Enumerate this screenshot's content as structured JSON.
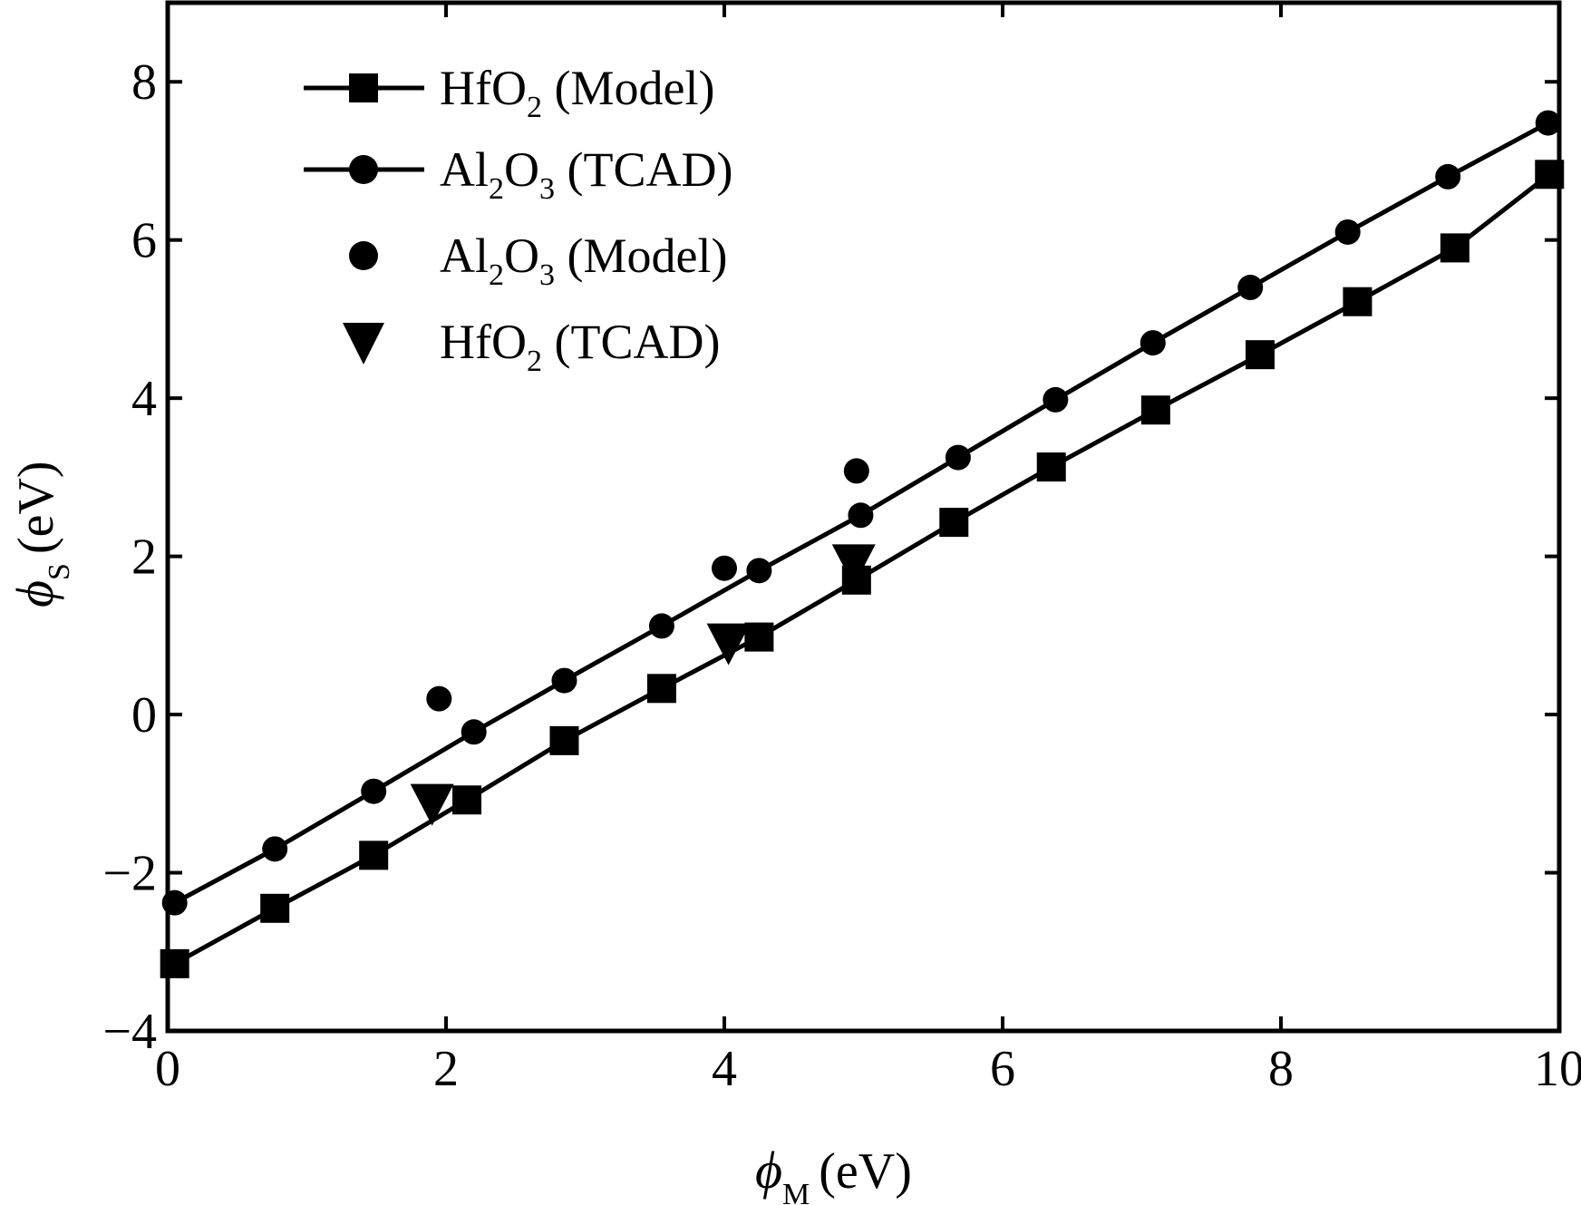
{
  "chart_data": {
    "type": "line",
    "xlabel": {
      "symbol": "ϕ",
      "subscript": "M",
      "unit": "(eV)"
    },
    "ylabel": {
      "symbol": "ϕ",
      "subscript": "S",
      "unit": "(eV)"
    },
    "xlim": [
      0,
      10
    ],
    "ylim": [
      -4,
      9
    ],
    "xticks": [
      0,
      2,
      4,
      6,
      8,
      10
    ],
    "yticks": [
      -4,
      -2,
      0,
      2,
      4,
      6,
      8
    ],
    "xtick_labels": [
      "0",
      "2",
      "4",
      "6",
      "8",
      "10"
    ],
    "ytick_labels": [
      "−4",
      "−2",
      "0",
      "2",
      "4",
      "6",
      "8"
    ],
    "grid": false,
    "legend_position": "top-left",
    "series": [
      {
        "name": "HfO2 (Model)",
        "label_main": "HfO",
        "label_sub": "2",
        "label_rest": " (Model)",
        "marker": "square",
        "line": true,
        "color": "#000000",
        "x": [
          0.05,
          0.77,
          1.48,
          2.15,
          2.85,
          3.55,
          4.25,
          4.95,
          5.65,
          6.35,
          7.1,
          7.85,
          8.55,
          9.25,
          9.93
        ],
        "y": [
          -3.15,
          -2.45,
          -1.78,
          -1.08,
          -0.33,
          0.33,
          0.98,
          1.7,
          2.43,
          3.13,
          3.85,
          4.55,
          5.22,
          5.9,
          6.83
        ]
      },
      {
        "name": "Al2O3 (TCAD)",
        "label_parts": [
          "Al",
          "2",
          "O",
          "3",
          " (TCAD)"
        ],
        "marker": "circle",
        "line": true,
        "color": "#000000",
        "x": [
          0.05,
          0.77,
          1.48,
          2.2,
          2.85,
          3.55,
          4.25,
          4.98,
          5.68,
          6.38,
          7.08,
          7.78,
          8.48,
          9.2,
          9.92
        ],
        "y": [
          -2.38,
          -1.7,
          -0.97,
          -0.22,
          0.43,
          1.12,
          1.82,
          2.52,
          3.25,
          3.98,
          4.7,
          5.4,
          6.1,
          6.8,
          7.48
        ]
      },
      {
        "name": "Al2O3 (Model)",
        "label_parts": [
          "Al",
          "2",
          "O",
          "3",
          " (Model)"
        ],
        "marker": "circle",
        "line": false,
        "color": "#000000",
        "x": [
          1.95,
          4.0,
          4.95
        ],
        "y": [
          0.2,
          1.85,
          3.08
        ]
      },
      {
        "name": "HfO2 (TCAD)",
        "label_main": "HfO",
        "label_sub": "2",
        "label_rest": " (TCAD)",
        "marker": "triangle-down",
        "line": false,
        "color": "#000000",
        "x": [
          1.9,
          4.03,
          4.93
        ],
        "y": [
          -1.13,
          0.9,
          1.9
        ]
      }
    ]
  }
}
